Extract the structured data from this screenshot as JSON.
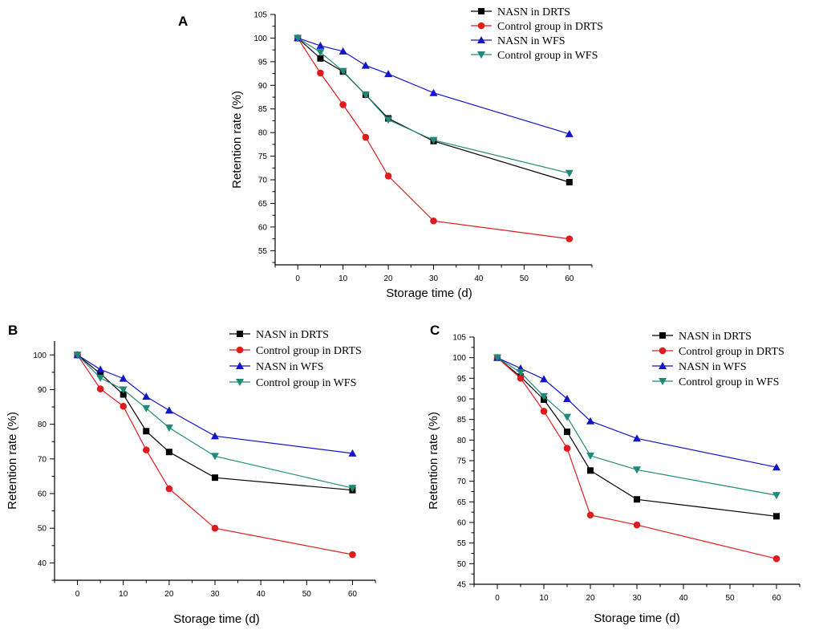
{
  "chart_data": [
    {
      "type": "line",
      "panel_label": "A",
      "title": "",
      "xlabel": "Storage time (d)",
      "ylabel": "Retention rate (%)",
      "xlim": [
        -5,
        65
      ],
      "ylim": [
        52,
        105
      ],
      "xticks": [
        0,
        10,
        20,
        30,
        40,
        50,
        60
      ],
      "yticks": [
        55,
        60,
        65,
        70,
        75,
        80,
        85,
        90,
        95,
        100,
        105
      ],
      "x": [
        0,
        5,
        10,
        15,
        20,
        30,
        60
      ],
      "series": [
        {
          "name": "NASN in DRTS",
          "color": "#000000",
          "marker": "square",
          "values": [
            100,
            95.7,
            92.9,
            88.0,
            83.0,
            78.2,
            69.5
          ]
        },
        {
          "name": "Control group in DRTS",
          "color": "#e01b1b",
          "marker": "circle",
          "values": [
            100,
            92.6,
            85.9,
            79.0,
            70.8,
            61.3,
            57.5
          ]
        },
        {
          "name": "NASN in WFS",
          "color": "#1414c8",
          "marker": "triangle-up",
          "values": [
            100,
            98.4,
            97.2,
            94.2,
            92.4,
            88.4,
            79.7
          ]
        },
        {
          "name": "Control group in WFS",
          "color": "#1f8a78",
          "marker": "triangle-down",
          "values": [
            100,
            97.0,
            93.0,
            88.0,
            82.7,
            78.4,
            71.4
          ]
        }
      ]
    },
    {
      "type": "line",
      "panel_label": "B",
      "title": "",
      "xlabel": "Storage time (d)",
      "ylabel": "Retention rate (%)",
      "xlim": [
        -5,
        65
      ],
      "ylim": [
        35,
        104
      ],
      "xticks": [
        0,
        10,
        20,
        30,
        40,
        50,
        60
      ],
      "yticks": [
        40,
        50,
        60,
        70,
        80,
        90,
        100
      ],
      "x": [
        0,
        5,
        10,
        15,
        20,
        30,
        60
      ],
      "series": [
        {
          "name": "NASN in DRTS",
          "color": "#000000",
          "marker": "square",
          "values": [
            100,
            94.6,
            88.6,
            78.0,
            72.0,
            64.6,
            61.0
          ]
        },
        {
          "name": "Control group in DRTS",
          "color": "#e01b1b",
          "marker": "circle",
          "values": [
            100,
            90.2,
            85.2,
            72.6,
            61.4,
            50.0,
            42.4
          ]
        },
        {
          "name": "NASN in WFS",
          "color": "#1414c8",
          "marker": "triangle-up",
          "values": [
            100,
            95.8,
            93.2,
            88.0,
            84.0,
            76.6,
            71.6
          ]
        },
        {
          "name": "Control group in WFS",
          "color": "#1f8a78",
          "marker": "triangle-down",
          "values": [
            100,
            93.4,
            90.0,
            84.6,
            79.0,
            70.8,
            61.6
          ]
        }
      ]
    },
    {
      "type": "line",
      "panel_label": "C",
      "title": "",
      "xlabel": "Storage time (d)",
      "ylabel": "Retention rate (%)",
      "xlim": [
        -5,
        65
      ],
      "ylim": [
        45,
        105
      ],
      "xticks": [
        0,
        10,
        20,
        30,
        40,
        50,
        60
      ],
      "yticks": [
        45,
        50,
        55,
        60,
        65,
        70,
        75,
        80,
        85,
        90,
        95,
        100,
        105
      ],
      "x": [
        0,
        5,
        10,
        15,
        20,
        30,
        60
      ],
      "series": [
        {
          "name": "NASN in DRTS",
          "color": "#000000",
          "marker": "square",
          "values": [
            100,
            95.4,
            89.8,
            82.0,
            72.6,
            65.6,
            61.5
          ]
        },
        {
          "name": "Control group in DRTS",
          "color": "#e01b1b",
          "marker": "circle",
          "values": [
            100,
            95.0,
            87.0,
            78.0,
            61.8,
            59.4,
            51.2
          ]
        },
        {
          "name": "NASN in WFS",
          "color": "#1414c8",
          "marker": "triangle-up",
          "values": [
            100,
            97.4,
            94.8,
            90.0,
            84.6,
            80.4,
            73.4
          ]
        },
        {
          "name": "Control group in WFS",
          "color": "#1f8a78",
          "marker": "triangle-down",
          "values": [
            100,
            96.4,
            90.6,
            85.6,
            76.2,
            72.8,
            66.6
          ]
        }
      ]
    }
  ]
}
